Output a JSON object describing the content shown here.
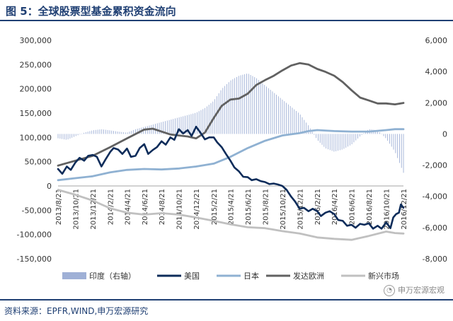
{
  "title": "图 5：全球股票型基金累积资金流向",
  "source": "资料来源：EPFR,WIND,申万宏源研究",
  "watermark": "申万宏源宏观",
  "watermark_icon": "wechat-icon",
  "chart_data": {
    "type": "line",
    "title": "",
    "xlabel": "",
    "ylabel_left": "",
    "ylabel_right": "",
    "ylim_left": [
      -150000,
      300000
    ],
    "yticks_left": [
      -150000,
      -100000,
      -50000,
      0,
      50000,
      100000,
      150000,
      200000,
      250000,
      300000
    ],
    "ytick_labels_left": [
      "-150,000",
      "-100,000",
      "-50,000",
      "0",
      "50,000",
      "100,000",
      "150,000",
      "200,000",
      "250,000",
      "300,000"
    ],
    "ylim_right": [
      -8000,
      6000
    ],
    "yticks_right": [
      -8000,
      -6000,
      -4000,
      -2000,
      0,
      2000,
      4000,
      6000
    ],
    "ytick_labels_right": [
      "-8,000",
      "-6,000",
      "-4,000",
      "-2,000",
      "0",
      "2,000",
      "4,000",
      "6,000"
    ],
    "xlim": [
      "2013-08-21",
      "2016-12-21"
    ],
    "x_tick_labels": [
      "2013/8/21",
      "2013/10/21",
      "2013/12/21",
      "2014/2/21",
      "2014/4/21",
      "2014/6/21",
      "2014/8/21",
      "2014/10/21",
      "2014/12/21",
      "2015/2/21",
      "2015/4/21",
      "2015/6/21",
      "2015/8/21",
      "2015/10/21",
      "2015/12/21",
      "2016/2/21",
      "2016/4/21",
      "2016/6/21",
      "2016/8/21",
      "2016/10/21",
      "2016/12/21"
    ],
    "x_tick_dates": [
      "2013-08-21",
      "2013-10-21",
      "2013-12-21",
      "2014-02-21",
      "2014-04-21",
      "2014-06-21",
      "2014-08-21",
      "2014-10-21",
      "2014-12-21",
      "2015-02-21",
      "2015-04-21",
      "2015-06-21",
      "2015-08-21",
      "2015-10-21",
      "2015-12-21",
      "2016-02-21",
      "2016-04-21",
      "2016-06-21",
      "2016-08-21",
      "2016-10-21",
      "2016-12-21"
    ],
    "legend_position": "bottom",
    "series": [
      {
        "name": "印度（右轴）",
        "kind": "bar",
        "axis": "right",
        "color": "#9fb0d6",
        "points": [
          [
            "2013-08-21",
            -280
          ],
          [
            "2013-09-21",
            -380
          ],
          [
            "2013-10-21",
            -150
          ],
          [
            "2013-11-21",
            80
          ],
          [
            "2013-12-21",
            230
          ],
          [
            "2014-01-21",
            300
          ],
          [
            "2014-02-21",
            230
          ],
          [
            "2014-03-21",
            150
          ],
          [
            "2014-04-21",
            80
          ],
          [
            "2014-05-21",
            300
          ],
          [
            "2014-06-21",
            450
          ],
          [
            "2014-07-21",
            600
          ],
          [
            "2014-08-21",
            760
          ],
          [
            "2014-09-21",
            910
          ],
          [
            "2014-10-21",
            1060
          ],
          [
            "2014-11-21",
            1210
          ],
          [
            "2014-12-21",
            1360
          ],
          [
            "2015-01-21",
            1660
          ],
          [
            "2015-02-21",
            2120
          ],
          [
            "2015-03-21",
            2880
          ],
          [
            "2015-04-21",
            3420
          ],
          [
            "2015-05-21",
            3730
          ],
          [
            "2015-06-21",
            3880
          ],
          [
            "2015-07-21",
            3580
          ],
          [
            "2015-08-21",
            3110
          ],
          [
            "2015-09-21",
            2650
          ],
          [
            "2015-10-21",
            2200
          ],
          [
            "2015-11-21",
            1740
          ],
          [
            "2015-12-21",
            1290
          ],
          [
            "2016-01-21",
            530
          ],
          [
            "2016-02-21",
            -380
          ],
          [
            "2016-03-21",
            -920
          ],
          [
            "2016-04-21",
            -1140
          ],
          [
            "2016-05-21",
            -990
          ],
          [
            "2016-06-21",
            -680
          ],
          [
            "2016-07-21",
            -150
          ],
          [
            "2016-08-21",
            310
          ],
          [
            "2016-09-21",
            230
          ],
          [
            "2016-10-21",
            -300
          ],
          [
            "2016-11-21",
            -1140
          ],
          [
            "2016-12-21",
            -2490
          ]
        ]
      },
      {
        "name": "美国",
        "kind": "line",
        "axis": "left",
        "color": "#0d2c5a",
        "points": [
          [
            "2013-08-21",
            35000
          ],
          [
            "2013-09-05",
            25000
          ],
          [
            "2013-09-21",
            40000
          ],
          [
            "2013-10-05",
            33000
          ],
          [
            "2013-10-21",
            48000
          ],
          [
            "2013-11-05",
            58000
          ],
          [
            "2013-11-21",
            52000
          ],
          [
            "2013-12-05",
            62000
          ],
          [
            "2013-12-21",
            64000
          ],
          [
            "2014-01-05",
            60000
          ],
          [
            "2014-01-21",
            40000
          ],
          [
            "2014-02-05",
            55000
          ],
          [
            "2014-02-21",
            70000
          ],
          [
            "2014-03-05",
            78000
          ],
          [
            "2014-03-21",
            75000
          ],
          [
            "2014-04-05",
            66000
          ],
          [
            "2014-04-21",
            77000
          ],
          [
            "2014-05-05",
            60000
          ],
          [
            "2014-05-21",
            62000
          ],
          [
            "2014-06-05",
            78000
          ],
          [
            "2014-06-21",
            86000
          ],
          [
            "2014-07-05",
            66000
          ],
          [
            "2014-07-21",
            74000
          ],
          [
            "2014-08-05",
            80000
          ],
          [
            "2014-08-21",
            92000
          ],
          [
            "2014-09-05",
            85000
          ],
          [
            "2014-09-21",
            100000
          ],
          [
            "2014-10-05",
            95000
          ],
          [
            "2014-10-21",
            117000
          ],
          [
            "2014-11-05",
            108000
          ],
          [
            "2014-11-21",
            115000
          ],
          [
            "2014-12-05",
            103000
          ],
          [
            "2014-12-21",
            122000
          ],
          [
            "2015-01-05",
            110000
          ],
          [
            "2015-01-21",
            96000
          ],
          [
            "2015-02-05",
            100000
          ],
          [
            "2015-02-21",
            100000
          ],
          [
            "2015-03-05",
            90000
          ],
          [
            "2015-03-21",
            80000
          ],
          [
            "2015-04-05",
            66000
          ],
          [
            "2015-04-21",
            52000
          ],
          [
            "2015-05-05",
            38000
          ],
          [
            "2015-05-21",
            30000
          ],
          [
            "2015-06-05",
            19000
          ],
          [
            "2015-06-21",
            18000
          ],
          [
            "2015-07-05",
            12000
          ],
          [
            "2015-07-21",
            14000
          ],
          [
            "2015-08-05",
            10000
          ],
          [
            "2015-08-21",
            8000
          ],
          [
            "2015-09-05",
            4000
          ],
          [
            "2015-09-21",
            5000
          ],
          [
            "2015-10-05",
            3000
          ],
          [
            "2015-10-21",
            0
          ],
          [
            "2015-11-05",
            -8000
          ],
          [
            "2015-11-21",
            -22000
          ],
          [
            "2015-12-05",
            -32000
          ],
          [
            "2015-12-21",
            -47000
          ],
          [
            "2016-01-05",
            -45000
          ],
          [
            "2016-01-21",
            -52000
          ],
          [
            "2016-02-05",
            -47000
          ],
          [
            "2016-02-21",
            -52000
          ],
          [
            "2016-03-05",
            -62000
          ],
          [
            "2016-03-21",
            -55000
          ],
          [
            "2016-04-05",
            -52000
          ],
          [
            "2016-04-21",
            -58000
          ],
          [
            "2016-05-05",
            -70000
          ],
          [
            "2016-05-21",
            -72000
          ],
          [
            "2016-06-05",
            -82000
          ],
          [
            "2016-06-21",
            -80000
          ],
          [
            "2016-07-05",
            -86000
          ],
          [
            "2016-07-21",
            -78000
          ],
          [
            "2016-08-05",
            -80000
          ],
          [
            "2016-08-21",
            -77000
          ],
          [
            "2016-09-05",
            -88000
          ],
          [
            "2016-09-21",
            -82000
          ],
          [
            "2016-10-05",
            -88000
          ],
          [
            "2016-10-21",
            -75000
          ],
          [
            "2016-11-05",
            -87000
          ],
          [
            "2016-11-15",
            -65000
          ],
          [
            "2016-11-25",
            -58000
          ],
          [
            "2016-12-05",
            -55000
          ],
          [
            "2016-12-12",
            -38000
          ],
          [
            "2016-12-21",
            -45000
          ]
        ]
      },
      {
        "name": "日本",
        "kind": "line",
        "axis": "left",
        "color": "#8fb1d2",
        "points": [
          [
            "2013-08-21",
            12000
          ],
          [
            "2013-10-21",
            16000
          ],
          [
            "2013-12-21",
            20000
          ],
          [
            "2014-02-21",
            28000
          ],
          [
            "2014-04-21",
            33000
          ],
          [
            "2014-06-21",
            35000
          ],
          [
            "2014-08-21",
            34000
          ],
          [
            "2014-10-21",
            36000
          ],
          [
            "2014-12-21",
            40000
          ],
          [
            "2015-02-21",
            46000
          ],
          [
            "2015-04-21",
            60000
          ],
          [
            "2015-06-21",
            78000
          ],
          [
            "2015-08-21",
            93000
          ],
          [
            "2015-10-21",
            104000
          ],
          [
            "2015-12-21",
            109000
          ],
          [
            "2016-01-21",
            113000
          ],
          [
            "2016-02-21",
            115000
          ],
          [
            "2016-04-21",
            113000
          ],
          [
            "2016-06-21",
            112000
          ],
          [
            "2016-08-21",
            112000
          ],
          [
            "2016-10-21",
            115000
          ],
          [
            "2016-11-21",
            117000
          ],
          [
            "2016-12-21",
            117000
          ]
        ]
      },
      {
        "name": "发达欧洲",
        "kind": "line",
        "axis": "left",
        "color": "#616161",
        "points": [
          [
            "2013-08-21",
            42000
          ],
          [
            "2013-10-21",
            52000
          ],
          [
            "2013-12-21",
            62000
          ],
          [
            "2014-02-21",
            80000
          ],
          [
            "2014-04-21",
            98000
          ],
          [
            "2014-06-21",
            116000
          ],
          [
            "2014-07-21",
            118000
          ],
          [
            "2014-08-21",
            112000
          ],
          [
            "2014-09-21",
            106000
          ],
          [
            "2014-10-21",
            104000
          ],
          [
            "2014-11-21",
            102000
          ],
          [
            "2014-12-21",
            98000
          ],
          [
            "2015-01-21",
            110000
          ],
          [
            "2015-02-21",
            140000
          ],
          [
            "2015-03-21",
            165000
          ],
          [
            "2015-04-21",
            178000
          ],
          [
            "2015-05-21",
            180000
          ],
          [
            "2015-06-21",
            190000
          ],
          [
            "2015-07-21",
            208000
          ],
          [
            "2015-08-21",
            218000
          ],
          [
            "2015-09-21",
            227000
          ],
          [
            "2015-10-21",
            238000
          ],
          [
            "2015-11-21",
            248000
          ],
          [
            "2015-12-21",
            253000
          ],
          [
            "2016-01-21",
            250000
          ],
          [
            "2016-02-21",
            241000
          ],
          [
            "2016-03-21",
            235000
          ],
          [
            "2016-04-21",
            227000
          ],
          [
            "2016-05-21",
            214000
          ],
          [
            "2016-06-21",
            197000
          ],
          [
            "2016-07-21",
            182000
          ],
          [
            "2016-08-21",
            176000
          ],
          [
            "2016-09-21",
            170000
          ],
          [
            "2016-10-21",
            170000
          ],
          [
            "2016-11-21",
            168000
          ],
          [
            "2016-12-21",
            171000
          ]
        ]
      },
      {
        "name": "新兴市场",
        "kind": "line",
        "axis": "left",
        "color": "#c0c0c0",
        "points": [
          [
            "2013-08-21",
            -8000
          ],
          [
            "2013-10-21",
            -18000
          ],
          [
            "2013-12-21",
            -30000
          ],
          [
            "2014-02-21",
            -46000
          ],
          [
            "2014-04-21",
            -55000
          ],
          [
            "2014-06-21",
            -59000
          ],
          [
            "2014-08-21",
            -56000
          ],
          [
            "2014-10-21",
            -59000
          ],
          [
            "2014-12-21",
            -65000
          ],
          [
            "2015-02-21",
            -72000
          ],
          [
            "2015-04-21",
            -79000
          ],
          [
            "2015-06-21",
            -85000
          ],
          [
            "2015-08-21",
            -87000
          ],
          [
            "2015-10-21",
            -93000
          ],
          [
            "2015-12-21",
            -98000
          ],
          [
            "2016-02-21",
            -106000
          ],
          [
            "2016-04-21",
            -109000
          ],
          [
            "2016-06-21",
            -111000
          ],
          [
            "2016-08-21",
            -103000
          ],
          [
            "2016-10-21",
            -94000
          ],
          [
            "2016-11-21",
            -97000
          ],
          [
            "2016-12-21",
            -98000
          ]
        ]
      }
    ]
  }
}
